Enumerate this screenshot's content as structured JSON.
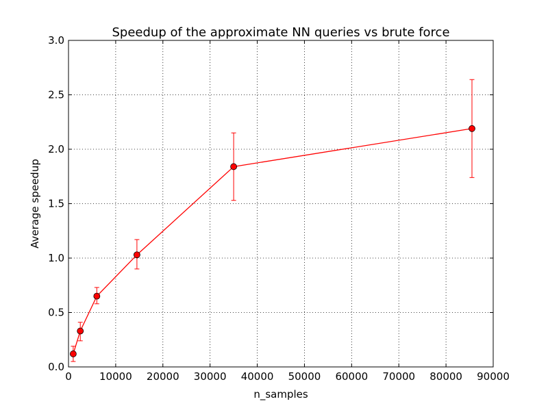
{
  "chart_data": {
    "type": "line",
    "title": "Speedup of the approximate NN queries vs brute force",
    "xlabel": "n_samples",
    "ylabel": "Average speedup",
    "xlim": [
      0,
      90000
    ],
    "ylim": [
      0.0,
      3.0
    ],
    "xticks": [
      0,
      10000,
      20000,
      30000,
      40000,
      50000,
      60000,
      70000,
      80000,
      90000
    ],
    "xtick_labels": [
      "0",
      "10000",
      "20000",
      "30000",
      "40000",
      "50000",
      "60000",
      "70000",
      "80000",
      "90000"
    ],
    "yticks": [
      0.0,
      0.5,
      1.0,
      1.5,
      2.0,
      2.5,
      3.0
    ],
    "ytick_labels": [
      "0.0",
      "0.5",
      "1.0",
      "1.5",
      "2.0",
      "2.5",
      "3.0"
    ],
    "grid": true,
    "series": [
      {
        "color": "#ff0000",
        "marker": "circle",
        "x": [
          1000,
          2500,
          6000,
          14500,
          35000,
          85500
        ],
        "y": [
          0.12,
          0.33,
          0.65,
          1.03,
          1.84,
          2.19
        ],
        "yerr_low": [
          0.05,
          0.24,
          0.58,
          0.9,
          1.53,
          1.74
        ],
        "yerr_high": [
          0.19,
          0.41,
          0.73,
          1.17,
          2.15,
          2.64
        ]
      }
    ]
  }
}
